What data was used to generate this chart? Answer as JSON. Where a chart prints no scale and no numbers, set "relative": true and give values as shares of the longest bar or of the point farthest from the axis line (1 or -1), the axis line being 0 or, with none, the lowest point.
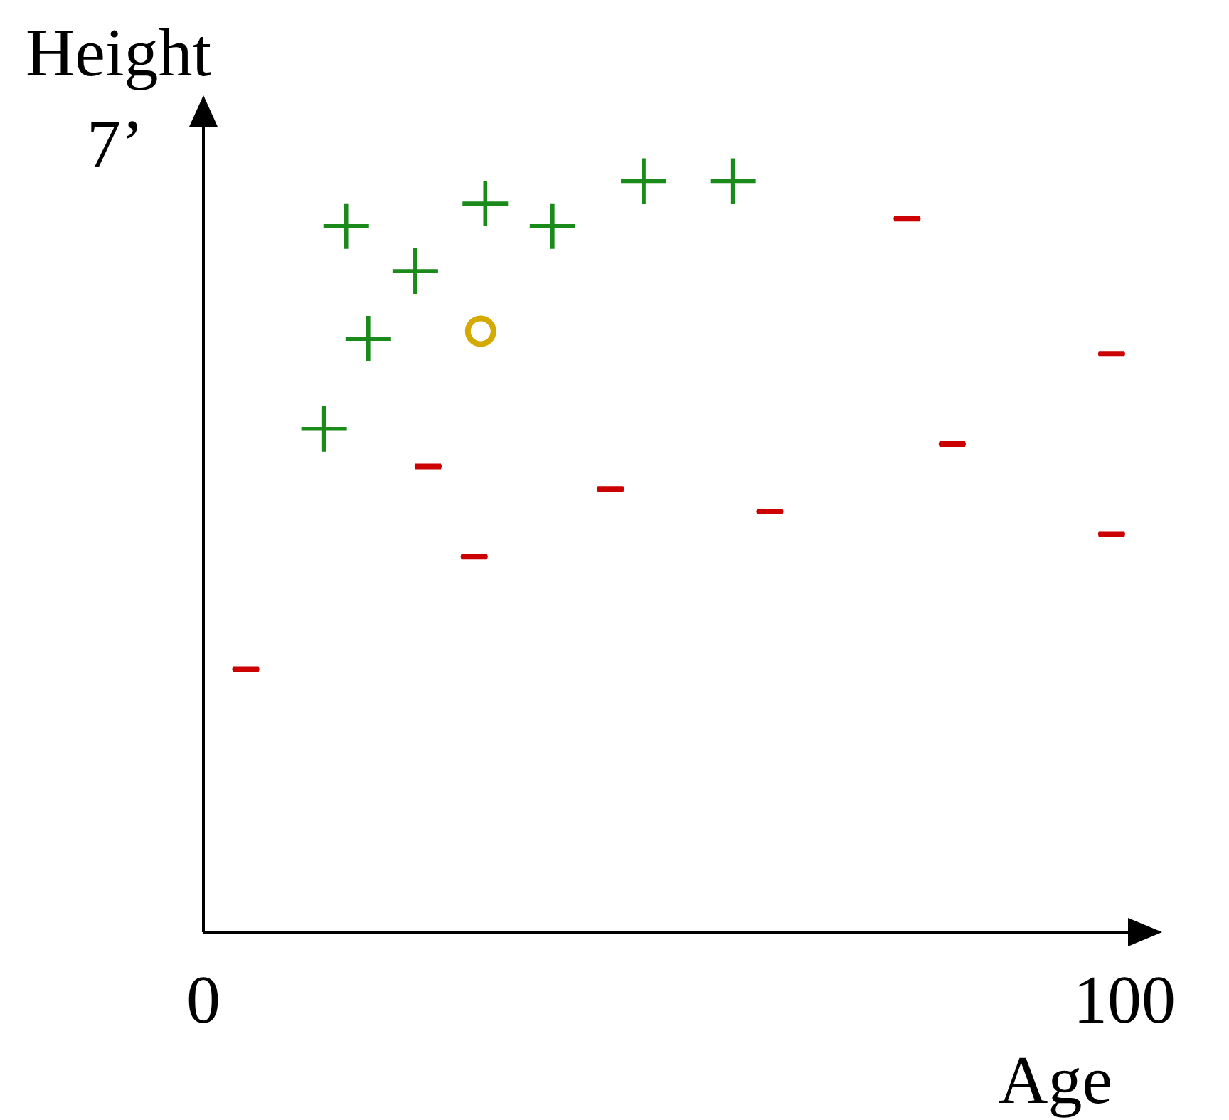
{
  "chart_data": {
    "type": "scatter",
    "xlabel": "Age",
    "ylabel": "Height",
    "relative": true,
    "xlim": [
      0,
      101
    ],
    "xticks": [
      0,
      100
    ],
    "grid": false,
    "legend": false,
    "annotations": [
      "7’"
    ],
    "series": [
      {
        "color": "#1a8a1a",
        "marker": "cross",
        "x": [
          15.5,
          23.0,
          17.9,
          13.1,
          30.6,
          37.9,
          47.8,
          57.5
        ],
        "values": [
          0.94,
          0.88,
          0.79,
          0.67,
          0.97,
          0.94,
          1,
          1
        ]
      },
      {
        "color": "#cc0000",
        "x": [
          4.6,
          24.4,
          29.4,
          44.2,
          61.5,
          76.4,
          81.3,
          98.6,
          98.6
        ],
        "values": [
          0.35,
          0.62,
          0.5,
          0.59,
          0.56,
          0.95,
          0.65,
          0.77,
          0.53
        ]
      },
      {
        "color": "#d4aa00",
        "marker": "circle",
        "x": [
          30.1
        ],
        "values": [
          0.8
        ]
      }
    ]
  }
}
